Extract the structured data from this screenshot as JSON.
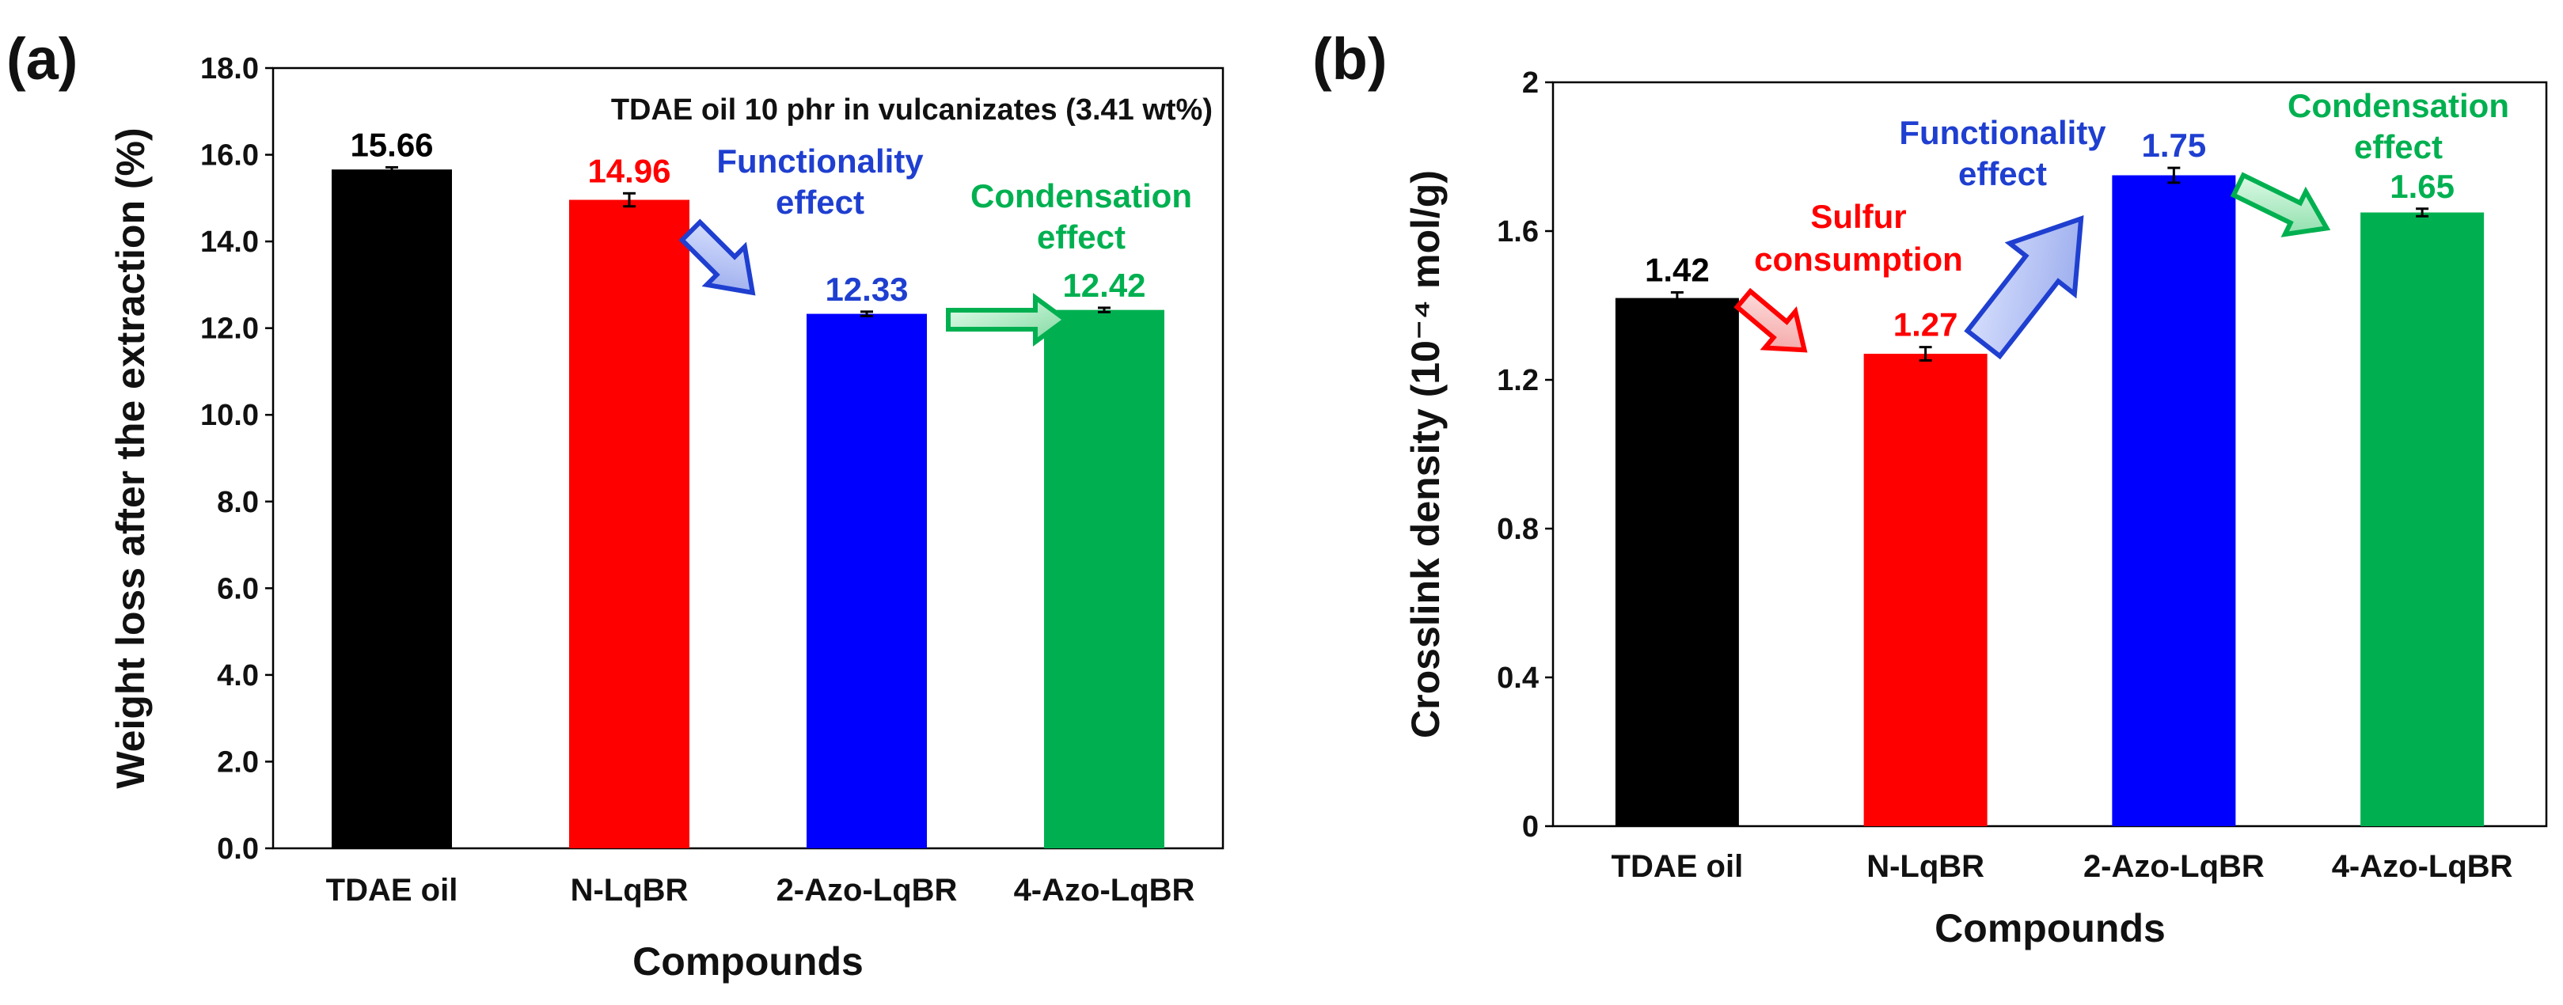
{
  "chart_data": [
    {
      "panel": "(a)",
      "type": "bar",
      "title": "",
      "xlabel": "Compounds",
      "ylabel": "Weight loss after the extraction (%)",
      "ylim": [
        0,
        18
      ],
      "yticks": [
        "0.0",
        "2.0",
        "4.0",
        "6.0",
        "8.0",
        "10.0",
        "12.0",
        "14.0",
        "16.0",
        "18.0"
      ],
      "categories": [
        "TDAE oil",
        "N-LqBR",
        "2-Azo-LqBR",
        "4-Azo-LqBR"
      ],
      "values": [
        15.66,
        14.96,
        12.33,
        12.42
      ],
      "value_labels": [
        "15.66",
        "14.96",
        "12.33",
        "12.42"
      ],
      "errors": [
        0.05,
        0.15,
        0.05,
        0.05
      ],
      "colors": [
        "#000000",
        "#ff0000",
        "#0000ff",
        "#00b050"
      ],
      "label_colors": [
        "#000000",
        "#ff0000",
        "#1f3fd0",
        "#00b050"
      ],
      "note": "TDAE oil 10 phr in vulcanizates (3.41 wt%)",
      "annotations": [
        {
          "lines": [
            "Functionality",
            "effect"
          ],
          "color": "#1f3fd0"
        },
        {
          "lines": [
            "Condensation",
            "effect"
          ],
          "color": "#00b050"
        }
      ]
    },
    {
      "panel": "(b)",
      "type": "bar",
      "title": "",
      "xlabel": "Compounds",
      "ylabel": "Crosslink density (10⁻⁴ mol/g)",
      "ylim": [
        0,
        2
      ],
      "yticks": [
        "0",
        "0.4",
        "0.8",
        "1.2",
        "1.6",
        "2"
      ],
      "categories": [
        "TDAE oil",
        "N-LqBR",
        "2-Azo-LqBR",
        "4-Azo-LqBR"
      ],
      "values": [
        1.42,
        1.27,
        1.75,
        1.65
      ],
      "value_labels": [
        "1.42",
        "1.27",
        "1.75",
        "1.65"
      ],
      "errors": [
        0.015,
        0.018,
        0.02,
        0.01
      ],
      "colors": [
        "#000000",
        "#ff0000",
        "#0000ff",
        "#00b050"
      ],
      "label_colors": [
        "#000000",
        "#ff0000",
        "#1f3fd0",
        "#00b050"
      ],
      "annotations": [
        {
          "lines": [
            "Sulfur",
            "consumption"
          ],
          "color": "#ff0000"
        },
        {
          "lines": [
            "Functionality",
            "effect"
          ],
          "color": "#1f3fd0"
        },
        {
          "lines": [
            "Condensation",
            "effect"
          ],
          "color": "#00b050"
        }
      ]
    }
  ]
}
